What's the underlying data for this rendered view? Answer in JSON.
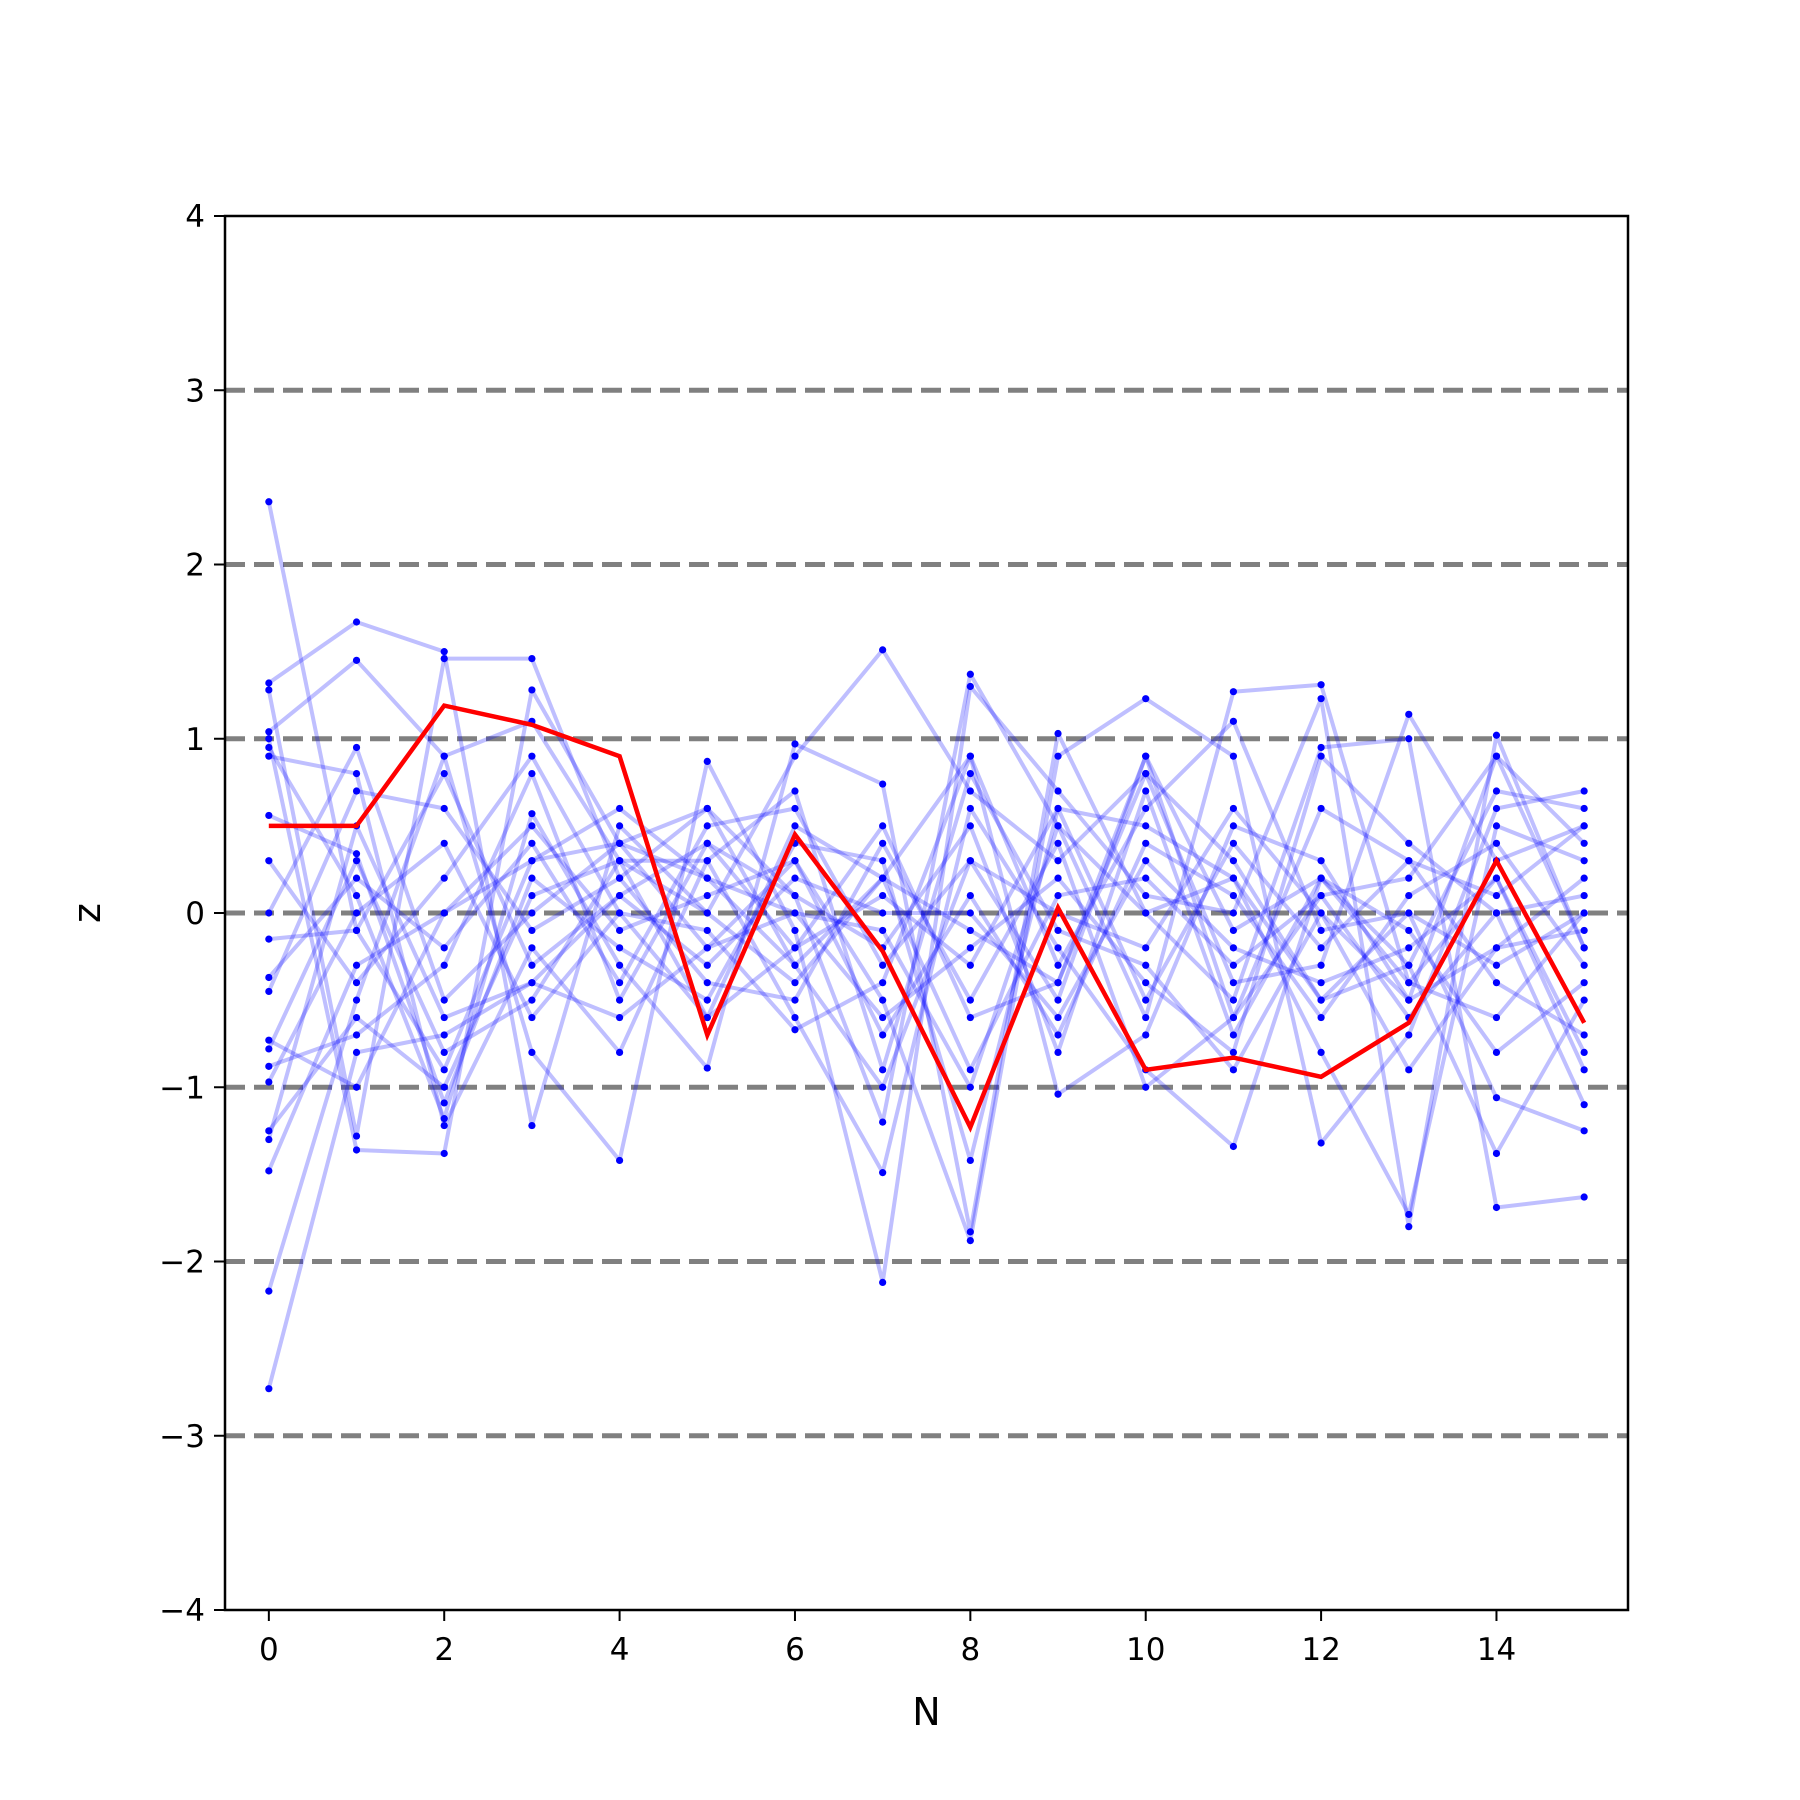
{
  "chart_data": {
    "type": "line",
    "xlabel": "N",
    "ylabel": "z",
    "xlim": [
      -0.5,
      15.5
    ],
    "ylim": [
      -4,
      4
    ],
    "x_ticks": [
      0,
      2,
      4,
      6,
      8,
      10,
      12,
      14
    ],
    "x_tick_labels": [
      "0",
      "2",
      "4",
      "6",
      "8",
      "10",
      "12",
      "14"
    ],
    "y_ticks": [
      -4,
      -3,
      -2,
      -1,
      0,
      1,
      2,
      3,
      4
    ],
    "y_tick_labels": [
      "−4",
      "−3",
      "−2",
      "−1",
      "0",
      "1",
      "2",
      "3",
      "4"
    ],
    "reference_lines": [
      -3,
      -2,
      -1,
      0,
      1,
      2,
      3
    ],
    "colors": {
      "highlight": "#ff0000",
      "trajectories": "#0000ff",
      "reference_lines": "#808080",
      "frame": "#000000"
    },
    "x": [
      0,
      1,
      2,
      3,
      4,
      5,
      6,
      7,
      8,
      9,
      10,
      11,
      12,
      13,
      14,
      15
    ],
    "highlight_series": {
      "values": [
        0.5,
        0.5,
        1.19,
        1.08,
        0.9,
        -0.7,
        0.45,
        -0.22,
        -1.23,
        0.03,
        -0.9,
        -0.83,
        -0.94,
        -0.63,
        0.3,
        -0.63
      ]
    },
    "background_series": [
      [
        2.36,
        -0.1,
        -0.9,
        0.3,
        0.6,
        0.2,
        -0.3,
        -1.0,
        0.3,
        -0.5,
        0.9,
        -0.6,
        0.1,
        0.2,
        0.9,
        0.4
      ],
      [
        -2.73,
        -0.8,
        -0.7,
        -0.4,
        0.1,
        0.4,
        -0.2,
        0.5,
        -0.6,
        -0.4,
        0.8,
        0.3,
        -0.5,
        -0.3,
        0.7,
        0.6
      ],
      [
        -2.17,
        -0.5,
        0.9,
        1.1,
        0.3,
        -0.6,
        0.5,
        0.2,
        0.9,
        -1.04,
        -0.7,
        0.5,
        0.3,
        -0.5,
        -0.2,
        -0.1
      ],
      [
        1.32,
        1.67,
        1.5,
        -1.22,
        0.5,
        0.0,
        0.9,
        1.51,
        0.7,
        0.3,
        0.8,
        -0.4,
        -0.3,
        1.14,
        0.3,
        0.5
      ],
      [
        1.28,
        -1.28,
        1.46,
        1.46,
        0.2,
        0.6,
        0.1,
        -1.2,
        1.37,
        0.5,
        -0.6,
        1.27,
        1.31,
        -0.4,
        -0.6,
        0.0
      ],
      [
        1.04,
        1.45,
        0.9,
        -0.8,
        -1.42,
        0.87,
        -0.1,
        -2.12,
        1.3,
        0.7,
        0.1,
        0.0,
        1.23,
        -1.8,
        1.02,
        -0.2
      ],
      [
        1.0,
        -1.36,
        -1.38,
        1.28,
        0.4,
        -0.2,
        0.3,
        -0.5,
        -1.88,
        0.9,
        1.23,
        0.9,
        -1.32,
        -0.7,
        0.6,
        0.7
      ],
      [
        0.95,
        0.1,
        -1.18,
        0.57,
        -0.3,
        -0.89,
        0.97,
        0.74,
        -1.83,
        1.03,
        0.0,
        -0.5,
        0.95,
        1.0,
        -1.69,
        -1.63
      ],
      [
        0.9,
        0.8,
        -1.22,
        -0.2,
        -0.8,
        0.3,
        -0.6,
        -1.49,
        0.6,
        -0.2,
        -0.9,
        -1.34,
        0.2,
        -0.3,
        -1.38,
        -0.5
      ],
      [
        0.56,
        0.34,
        -1.09,
        0.2,
        -0.2,
        -0.5,
        0.4,
        0.3,
        -1.42,
        0.6,
        0.5,
        0.2,
        -0.8,
        -1.73,
        0.5,
        0.3
      ],
      [
        0.3,
        -0.4,
        0.2,
        0.9,
        0.0,
        -0.1,
        -0.67,
        -0.4,
        0.9,
        -0.3,
        0.6,
        1.1,
        -0.1,
        0.0,
        -1.06,
        -1.25
      ],
      [
        0.0,
        0.95,
        -0.5,
        0.0,
        0.4,
        0.2,
        0.0,
        -0.6,
        -0.2,
        0.2,
        -0.4,
        -0.8,
        0.9,
        0.4,
        0.0,
        -1.1
      ],
      [
        -0.15,
        -0.1,
        0.8,
        -0.3,
        0.1,
        -0.3,
        0.2,
        0.0,
        0.0,
        -0.6,
        0.3,
        -0.2,
        -0.4,
        -0.2,
        0.2,
        -0.9
      ],
      [
        -0.37,
        0.2,
        -0.2,
        0.4,
        -0.4,
        0.5,
        0.6,
        -0.3,
        0.3,
        0.0,
        -0.2,
        0.6,
        0.0,
        -0.9,
        -0.2,
        0.2
      ],
      [
        -0.45,
        0.7,
        0.6,
        -0.1,
        0.2,
        -0.4,
        -0.5,
        0.4,
        -0.5,
        0.4,
        -1.0,
        -0.6,
        0.6,
        0.3,
        -0.4,
        -0.7
      ],
      [
        -0.73,
        -1.0,
        0.0,
        0.5,
        -0.1,
        0.1,
        0.3,
        -0.7,
        0.1,
        -0.7,
        0.4,
        0.1,
        -0.6,
        0.1,
        0.4,
        -0.3
      ],
      [
        -0.78,
        0.3,
        -0.8,
        -0.5,
        0.3,
        0.0,
        -0.4,
        0.2,
        -0.9,
        0.1,
        0.2,
        -0.3,
        0.1,
        -0.6,
        0.0,
        0.1
      ],
      [
        -0.88,
        -0.7,
        -0.3,
        0.8,
        -0.5,
        0.4,
        0.1,
        -0.2,
        0.5,
        -0.8,
        0.7,
        -0.7,
        0.2,
        -0.1,
        -0.8,
        -0.4
      ],
      [
        -0.97,
        0.0,
        0.4,
        -0.6,
        0.0,
        -0.6,
        -0.2,
        0.1,
        -0.3,
        0.6,
        -0.5,
        0.4,
        -0.2,
        0.3,
        0.1,
        0.5
      ],
      [
        -1.25,
        -0.6,
        -1.0,
        0.1,
        0.3,
        0.3,
        0.7,
        -0.9,
        0.8,
        -0.1,
        -0.3,
        -0.9,
        0.0,
        -0.5,
        0.9,
        -0.2
      ],
      [
        -1.3,
        0.5,
        -0.6,
        -0.4,
        -0.6,
        -0.2,
        0.0,
        -0.1,
        -1.0,
        0.5,
        0.0,
        0.2,
        -0.5,
        0.0,
        -0.3,
        0.0
      ],
      [
        -1.48,
        -0.3,
        0.0,
        0.3,
        0.4,
        0.6,
        -0.3,
        0.2,
        -0.1,
        -0.4,
        0.9,
        -0.1,
        0.2,
        -0.4,
        0.2,
        -0.8
      ]
    ]
  }
}
